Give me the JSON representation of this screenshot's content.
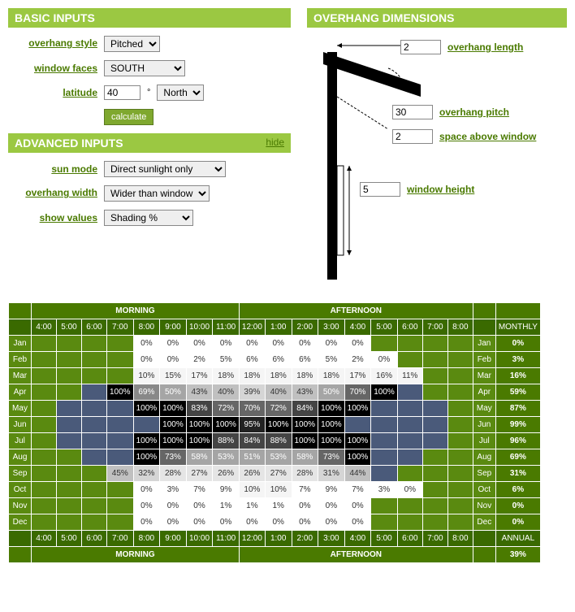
{
  "headers": {
    "basic": "BASIC INPUTS",
    "advanced": "ADVANCED INPUTS",
    "dimensions": "OVERHANG DIMENSIONS",
    "hide": "hide"
  },
  "labels": {
    "overhang_style": "overhang style",
    "window_faces": "window faces",
    "latitude": "latitude",
    "sun_mode": "sun mode",
    "overhang_width": "overhang width",
    "show_values": "show values",
    "calculate": "calculate",
    "overhang_length": "overhang length",
    "overhang_pitch": "overhang pitch",
    "space_above_window": "space above window",
    "window_height": "window height",
    "degrees": "°"
  },
  "values": {
    "overhang_style": "Pitched",
    "window_faces": "SOUTH",
    "latitude": "40",
    "hemisphere": "North",
    "sun_mode": "Direct sunlight only",
    "overhang_width": "Wider than window",
    "show_values": "Shading %",
    "overhang_length": "2",
    "overhang_pitch": "30",
    "space_above_window": "2",
    "window_height": "5"
  },
  "table": {
    "morning": "MORNING",
    "afternoon": "AFTERNOON",
    "monthly": "MONTHLY",
    "annual": "ANNUAL",
    "times": [
      "4:00",
      "5:00",
      "6:00",
      "7:00",
      "8:00",
      "9:00",
      "10:00",
      "11:00",
      "12:00",
      "1:00",
      "2:00",
      "3:00",
      "4:00",
      "5:00",
      "6:00",
      "7:00",
      "8:00"
    ],
    "months": [
      "Jan",
      "Feb",
      "Mar",
      "Apr",
      "May",
      "Jun",
      "Jul",
      "Aug",
      "Sep",
      "Oct",
      "Nov",
      "Dec"
    ],
    "data": [
      {
        "cells": [
          "",
          "",
          "",
          "",
          "0%",
          "0%",
          "0%",
          "0%",
          "0%",
          "0%",
          "0%",
          "0%",
          "0%",
          "",
          "",
          "",
          ""
        ],
        "monthly": "0%",
        "colors": [
          "none",
          "none",
          "none",
          "none",
          "0",
          "0",
          "0",
          "0",
          "0",
          "0",
          "0",
          "0",
          "0",
          "none",
          "none",
          "none",
          "none"
        ]
      },
      {
        "cells": [
          "",
          "",
          "",
          "",
          "0%",
          "0%",
          "2%",
          "5%",
          "6%",
          "6%",
          "6%",
          "5%",
          "2%",
          "0%",
          "",
          "",
          ""
        ],
        "monthly": "3%",
        "colors": [
          "none",
          "none",
          "none",
          "none",
          "0",
          "0",
          "0",
          "0",
          "0",
          "0",
          "0",
          "0",
          "0",
          "0",
          "none",
          "none",
          "none"
        ]
      },
      {
        "cells": [
          "",
          "",
          "",
          "",
          "10%",
          "15%",
          "17%",
          "18%",
          "18%",
          "18%",
          "18%",
          "18%",
          "17%",
          "16%",
          "11%",
          "",
          ""
        ],
        "monthly": "16%",
        "colors": [
          "none",
          "none",
          "none",
          "none",
          "10",
          "10",
          "10",
          "10",
          "10",
          "10",
          "10",
          "10",
          "10",
          "10",
          "10",
          "none",
          "none"
        ]
      },
      {
        "cells": [
          "",
          "",
          "",
          "100%",
          "69%",
          "50%",
          "43%",
          "40%",
          "39%",
          "40%",
          "43%",
          "50%",
          "70%",
          "100%",
          "",
          "",
          ""
        ],
        "monthly": "59%",
        "colors": [
          "none",
          "none",
          "night",
          "100",
          "60",
          "50",
          "40",
          "40",
          "30",
          "40",
          "40",
          "50",
          "70",
          "100",
          "night",
          "none",
          "none"
        ]
      },
      {
        "cells": [
          "",
          "",
          "",
          "",
          "100%",
          "100%",
          "83%",
          "72%",
          "70%",
          "72%",
          "84%",
          "100%",
          "100%",
          "",
          "",
          "",
          ""
        ],
        "monthly": "87%",
        "colors": [
          "none",
          "night",
          "night",
          "night",
          "100",
          "100",
          "80",
          "70",
          "70",
          "70",
          "80",
          "100",
          "100",
          "night",
          "night",
          "night",
          "none"
        ]
      },
      {
        "cells": [
          "",
          "",
          "",
          "",
          "",
          "100%",
          "100%",
          "100%",
          "95%",
          "100%",
          "100%",
          "100%",
          "",
          "",
          "",
          "",
          ""
        ],
        "monthly": "99%",
        "colors": [
          "none",
          "night",
          "night",
          "night",
          "night",
          "100",
          "100",
          "100",
          "90",
          "100",
          "100",
          "100",
          "night",
          "night",
          "night",
          "night",
          "none"
        ]
      },
      {
        "cells": [
          "",
          "",
          "",
          "",
          "100%",
          "100%",
          "100%",
          "88%",
          "84%",
          "88%",
          "100%",
          "100%",
          "100%",
          "",
          "",
          "",
          ""
        ],
        "monthly": "96%",
        "colors": [
          "none",
          "night",
          "night",
          "night",
          "100",
          "100",
          "100",
          "80",
          "80",
          "80",
          "100",
          "100",
          "100",
          "night",
          "night",
          "night",
          "none"
        ]
      },
      {
        "cells": [
          "",
          "",
          "",
          "",
          "100%",
          "73%",
          "58%",
          "53%",
          "51%",
          "53%",
          "58%",
          "73%",
          "100%",
          "",
          "",
          "",
          ""
        ],
        "monthly": "69%",
        "colors": [
          "none",
          "none",
          "night",
          "night",
          "100",
          "70",
          "50",
          "50",
          "50",
          "50",
          "50",
          "70",
          "100",
          "night",
          "night",
          "none",
          "none"
        ]
      },
      {
        "cells": [
          "",
          "",
          "",
          "45%",
          "32%",
          "28%",
          "27%",
          "26%",
          "26%",
          "27%",
          "28%",
          "31%",
          "44%",
          "",
          "",
          "",
          ""
        ],
        "monthly": "31%",
        "colors": [
          "none",
          "none",
          "none",
          "40",
          "30",
          "20",
          "20",
          "20",
          "20",
          "20",
          "20",
          "30",
          "40",
          "night",
          "none",
          "none",
          "none"
        ]
      },
      {
        "cells": [
          "",
          "",
          "",
          "",
          "0%",
          "3%",
          "7%",
          "9%",
          "10%",
          "10%",
          "7%",
          "9%",
          "7%",
          "3%",
          "0%",
          "",
          ""
        ],
        "monthly": "6%",
        "colors": [
          "none",
          "none",
          "none",
          "none",
          "0",
          "0",
          "0",
          "0",
          "10",
          "10",
          "0",
          "0",
          "0",
          "0",
          "0",
          "none",
          "none"
        ]
      },
      {
        "cells": [
          "",
          "",
          "",
          "",
          "0%",
          "0%",
          "0%",
          "1%",
          "1%",
          "1%",
          "0%",
          "0%",
          "0%",
          "",
          "",
          "",
          ""
        ],
        "monthly": "0%",
        "colors": [
          "none",
          "none",
          "none",
          "none",
          "0",
          "0",
          "0",
          "0",
          "0",
          "0",
          "0",
          "0",
          "0",
          "none",
          "none",
          "none",
          "none"
        ]
      },
      {
        "cells": [
          "",
          "",
          "",
          "",
          "0%",
          "0%",
          "0%",
          "0%",
          "0%",
          "0%",
          "0%",
          "0%",
          "0%",
          "",
          "",
          "",
          ""
        ],
        "monthly": "0%",
        "colors": [
          "none",
          "none",
          "none",
          "none",
          "0",
          "0",
          "0",
          "0",
          "0",
          "0",
          "0",
          "0",
          "0",
          "none",
          "none",
          "none",
          "none"
        ]
      }
    ],
    "annual_value": "39%"
  }
}
